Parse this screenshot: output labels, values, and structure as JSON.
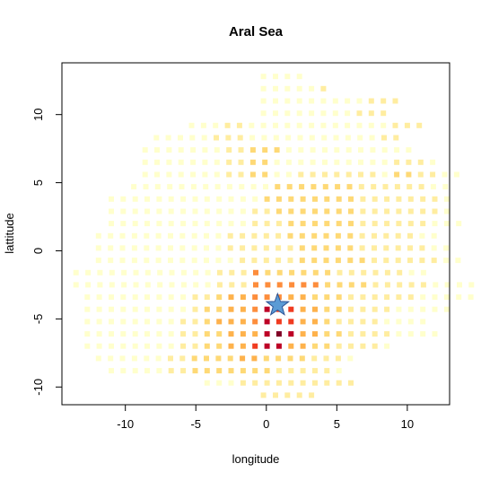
{
  "chart_data": {
    "type": "heatmap",
    "title": "Aral Sea",
    "xlabel": "longitude",
    "ylabel": "lattitude",
    "xlim": [
      -14.5,
      13
    ],
    "ylim": [
      -11.3,
      13.8
    ],
    "x_ticks": [
      -10,
      -5,
      0,
      5,
      10
    ],
    "y_ticks": [
      -10,
      -5,
      0,
      5,
      10
    ],
    "x_tick_labels": [
      "-10",
      "-5",
      "0",
      "5",
      "10"
    ],
    "y_tick_labels": [
      "-10",
      "-5",
      "0",
      "5",
      "10"
    ],
    "grid": false,
    "legend": "none",
    "colors": [
      "#FFFFCC",
      "#FFEDA0",
      "#FED976",
      "#FEB24C",
      "#FD8D3C",
      "#F03B20",
      "#BD0026",
      "#800026"
    ],
    "grid_step": {
      "x": 0.85,
      "y": 0.85
    },
    "marker": {
      "shape": "star",
      "x": 0.8,
      "y": -4.0,
      "color": "#5B9BD5"
    },
    "rows": [
      {
        "y": 12.8,
        "x_start": -0.2,
        "cells": "1111"
      },
      {
        "y": 11.9,
        "x_start": -0.2,
        "cells": "111112"
      },
      {
        "y": 11.0,
        "x_start": -0.2,
        "cells": "111111111222"
      },
      {
        "y": 10.1,
        "x_start": -0.2,
        "cells": "11111111222"
      },
      {
        "y": 9.2,
        "x_start": -5.3,
        "cells": "11122111111111111222"
      },
      {
        "y": 8.3,
        "x_start": -7.8,
        "cells": "111112221111111111122"
      },
      {
        "y": 7.4,
        "x_start": -8.6,
        "cells": "11111112233311111111111"
      },
      {
        "y": 6.5,
        "x_start": -8.6,
        "cells": "1111111223311111111112221"
      },
      {
        "y": 5.6,
        "x_start": -8.6,
        "cells": "111111122331122222221332211"
      },
      {
        "y": 4.7,
        "x_start": -9.4,
        "cells": "111111111111333333322222211"
      },
      {
        "y": 3.8,
        "x_start": -11.0,
        "cells": "11111111111113333333322222221"
      },
      {
        "y": 2.9,
        "x_start": -11.0,
        "cells": "11111111111122333333322222221"
      },
      {
        "y": 2.0,
        "x_start": -11.0,
        "cells": "111111111111222333333222222111"
      },
      {
        "y": 1.1,
        "x_start": -11.9,
        "cells": "11111111111222223333332222211"
      },
      {
        "y": 0.2,
        "x_start": -11.9,
        "cells": "111111111112222223333322222211"
      },
      {
        "y": -0.7,
        "x_start": -11.9,
        "cells": "1111111111112222233333322222211"
      },
      {
        "y": -1.6,
        "x_start": -13.5,
        "cells": "111111111111222533333322222211"
      },
      {
        "y": -2.5,
        "x_start": -13.5,
        "cells": "1111111111112225555553333222221111"
      },
      {
        "y": -3.4,
        "x_start": -12.7,
        "cells": "111111111223445554433322222211111"
      },
      {
        "y": -4.3,
        "x_start": -12.7,
        "cells": "1111111112334457664433222211111"
      },
      {
        "y": -5.2,
        "x_start": -12.7,
        "cells": "11111111223444576644322221111"
      },
      {
        "y": -6.1,
        "x_start": -12.7,
        "cells": "111111112233444787443322221111"
      },
      {
        "y": -7.0,
        "x_start": -12.7,
        "cells": "11111111223344677443322221"
      },
      {
        "y": -7.9,
        "x_start": -11.9,
        "cells": "1111112233334433332221"
      },
      {
        "y": -8.8,
        "x_start": -11.0,
        "cells": "11111223333333222221"
      },
      {
        "y": -9.7,
        "x_start": -4.2,
        "cells": "1112222222222"
      },
      {
        "y": -10.6,
        "x_start": -0.2,
        "cells": "22222"
      }
    ]
  }
}
